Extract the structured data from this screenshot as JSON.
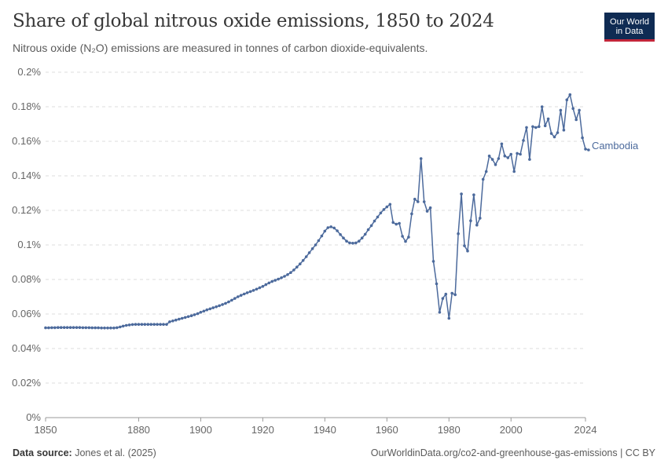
{
  "header": {
    "title": "Share of global nitrous oxide emissions, 1850 to 2024",
    "subtitle": "Nitrous oxide (N₂O) emissions are measured in tonnes of carbon dioxide-equivalents."
  },
  "logo": {
    "line1": "Our World",
    "line2": "in Data"
  },
  "footer": {
    "source_label": "Data source:",
    "source_text": "Jones et al. (2025)",
    "url": "OurWorldinData.org/co2-and-greenhouse-gas-emissions | CC BY"
  },
  "colors": {
    "series": "#4c6a9c",
    "grid": "#dddddd",
    "axis": "#666666"
  },
  "chart_data": {
    "type": "line",
    "title": "Share of global nitrous oxide emissions, 1850 to 2024",
    "xlabel": "",
    "ylabel": "",
    "xlim": [
      1850,
      2024
    ],
    "ylim": [
      0,
      0.2
    ],
    "x_ticks": [
      1850,
      1880,
      1900,
      1920,
      1940,
      1960,
      1980,
      2000,
      2024
    ],
    "x_tick_labels": [
      "1850",
      "1880",
      "1900",
      "1920",
      "1940",
      "1960",
      "1980",
      "2000",
      "2024"
    ],
    "y_ticks": [
      0,
      0.02,
      0.04,
      0.06,
      0.08,
      0.1,
      0.12,
      0.14,
      0.16,
      0.18,
      0.2
    ],
    "y_tick_labels": [
      "0%",
      "0.02%",
      "0.04%",
      "0.06%",
      "0.08%",
      "0.1%",
      "0.12%",
      "0.14%",
      "0.16%",
      "0.18%",
      "0.2%"
    ],
    "grid": true,
    "series": [
      {
        "name": "Cambodia",
        "points": [
          [
            1850,
            0.052
          ],
          [
            1851,
            0.052
          ],
          [
            1852,
            0.0521
          ],
          [
            1853,
            0.0521
          ],
          [
            1854,
            0.0522
          ],
          [
            1855,
            0.0522
          ],
          [
            1856,
            0.0522
          ],
          [
            1857,
            0.0522
          ],
          [
            1858,
            0.0522
          ],
          [
            1859,
            0.0522
          ],
          [
            1860,
            0.0522
          ],
          [
            1861,
            0.0522
          ],
          [
            1862,
            0.0521
          ],
          [
            1863,
            0.0521
          ],
          [
            1864,
            0.0521
          ],
          [
            1865,
            0.052
          ],
          [
            1866,
            0.052
          ],
          [
            1867,
            0.052
          ],
          [
            1868,
            0.0519
          ],
          [
            1869,
            0.0519
          ],
          [
            1870,
            0.0519
          ],
          [
            1871,
            0.0519
          ],
          [
            1872,
            0.0519
          ],
          [
            1873,
            0.0521
          ],
          [
            1874,
            0.0525
          ],
          [
            1875,
            0.053
          ],
          [
            1876,
            0.0534
          ],
          [
            1877,
            0.0537
          ],
          [
            1878,
            0.0539
          ],
          [
            1879,
            0.054
          ],
          [
            1880,
            0.054
          ],
          [
            1881,
            0.054
          ],
          [
            1882,
            0.054
          ],
          [
            1883,
            0.054
          ],
          [
            1884,
            0.054
          ],
          [
            1885,
            0.054
          ],
          [
            1886,
            0.054
          ],
          [
            1887,
            0.054
          ],
          [
            1888,
            0.054
          ],
          [
            1889,
            0.054
          ],
          [
            1890,
            0.0555
          ],
          [
            1891,
            0.056
          ],
          [
            1892,
            0.0565
          ],
          [
            1893,
            0.057
          ],
          [
            1894,
            0.0575
          ],
          [
            1895,
            0.058
          ],
          [
            1896,
            0.0585
          ],
          [
            1897,
            0.059
          ],
          [
            1898,
            0.0596
          ],
          [
            1899,
            0.0602
          ],
          [
            1900,
            0.061
          ],
          [
            1901,
            0.0617
          ],
          [
            1902,
            0.0624
          ],
          [
            1903,
            0.063
          ],
          [
            1904,
            0.0636
          ],
          [
            1905,
            0.0642
          ],
          [
            1906,
            0.0648
          ],
          [
            1907,
            0.0655
          ],
          [
            1908,
            0.0662
          ],
          [
            1909,
            0.067
          ],
          [
            1910,
            0.068
          ],
          [
            1911,
            0.069
          ],
          [
            1912,
            0.07
          ],
          [
            1913,
            0.0708
          ],
          [
            1914,
            0.0716
          ],
          [
            1915,
            0.0723
          ],
          [
            1916,
            0.073
          ],
          [
            1917,
            0.0737
          ],
          [
            1918,
            0.0744
          ],
          [
            1919,
            0.0752
          ],
          [
            1920,
            0.076
          ],
          [
            1921,
            0.077
          ],
          [
            1922,
            0.078
          ],
          [
            1923,
            0.0788
          ],
          [
            1924,
            0.0795
          ],
          [
            1925,
            0.0802
          ],
          [
            1926,
            0.081
          ],
          [
            1927,
            0.0818
          ],
          [
            1928,
            0.0828
          ],
          [
            1929,
            0.084
          ],
          [
            1930,
            0.0855
          ],
          [
            1931,
            0.0872
          ],
          [
            1932,
            0.089
          ],
          [
            1933,
            0.091
          ],
          [
            1934,
            0.0932
          ],
          [
            1935,
            0.0955
          ],
          [
            1936,
            0.0978
          ],
          [
            1937,
            0.1
          ],
          [
            1938,
            0.1025
          ],
          [
            1939,
            0.1052
          ],
          [
            1940,
            0.108
          ],
          [
            1941,
            0.11
          ],
          [
            1942,
            0.1105
          ],
          [
            1943,
            0.1098
          ],
          [
            1944,
            0.1082
          ],
          [
            1945,
            0.106
          ],
          [
            1946,
            0.104
          ],
          [
            1947,
            0.1022
          ],
          [
            1948,
            0.1012
          ],
          [
            1949,
            0.101
          ],
          [
            1950,
            0.1012
          ],
          [
            1951,
            0.1022
          ],
          [
            1952,
            0.104
          ],
          [
            1953,
            0.1062
          ],
          [
            1954,
            0.1088
          ],
          [
            1955,
            0.1112
          ],
          [
            1956,
            0.1138
          ],
          [
            1957,
            0.1162
          ],
          [
            1958,
            0.1185
          ],
          [
            1959,
            0.1205
          ],
          [
            1960,
            0.122
          ],
          [
            1961,
            0.1235
          ],
          [
            1962,
            0.113
          ],
          [
            1963,
            0.112
          ],
          [
            1964,
            0.1125
          ],
          [
            1965,
            0.105
          ],
          [
            1966,
            0.102
          ],
          [
            1967,
            0.1045
          ],
          [
            1968,
            0.118
          ],
          [
            1969,
            0.1265
          ],
          [
            1970,
            0.125
          ],
          [
            1971,
            0.15
          ],
          [
            1972,
            0.125
          ],
          [
            1973,
            0.1195
          ],
          [
            1974,
            0.1215
          ],
          [
            1975,
            0.0905
          ],
          [
            1976,
            0.0775
          ],
          [
            1977,
            0.061
          ],
          [
            1978,
            0.069
          ],
          [
            1979,
            0.0715
          ],
          [
            1980,
            0.0575
          ],
          [
            1981,
            0.072
          ],
          [
            1982,
            0.0712
          ],
          [
            1983,
            0.1065
          ],
          [
            1984,
            0.1295
          ],
          [
            1985,
            0.0995
          ],
          [
            1986,
            0.0965
          ],
          [
            1987,
            0.114
          ],
          [
            1988,
            0.129
          ],
          [
            1989,
            0.1115
          ],
          [
            1990,
            0.1155
          ],
          [
            1991,
            0.138
          ],
          [
            1992,
            0.1425
          ],
          [
            1993,
            0.1515
          ],
          [
            1994,
            0.1495
          ],
          [
            1995,
            0.1465
          ],
          [
            1996,
            0.15
          ],
          [
            1997,
            0.1585
          ],
          [
            1998,
            0.1515
          ],
          [
            1999,
            0.1505
          ],
          [
            2000,
            0.1525
          ],
          [
            2001,
            0.1425
          ],
          [
            2002,
            0.153
          ],
          [
            2003,
            0.1525
          ],
          [
            2004,
            0.1605
          ],
          [
            2005,
            0.168
          ],
          [
            2006,
            0.1495
          ],
          [
            2007,
            0.1685
          ],
          [
            2008,
            0.168
          ],
          [
            2009,
            0.1685
          ],
          [
            2010,
            0.18
          ],
          [
            2011,
            0.169
          ],
          [
            2012,
            0.173
          ],
          [
            2013,
            0.1645
          ],
          [
            2014,
            0.1625
          ],
          [
            2015,
            0.165
          ],
          [
            2016,
            0.178
          ],
          [
            2017,
            0.1665
          ],
          [
            2018,
            0.184
          ],
          [
            2019,
            0.187
          ],
          [
            2020,
            0.179
          ],
          [
            2021,
            0.1725
          ],
          [
            2022,
            0.178
          ],
          [
            2023,
            0.162
          ],
          [
            2024,
            0.1555
          ],
          [
            2025,
            0.155
          ]
        ]
      }
    ]
  }
}
